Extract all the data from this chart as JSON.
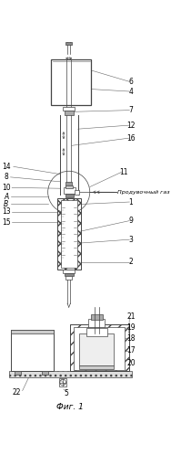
{
  "fig_label": "Фиг. 1",
  "purge_gas_label": "Продувочный газ",
  "bg_color": "#ffffff",
  "line_color": "#444444",
  "gray_light": "#cccccc",
  "gray_med": "#999999",
  "gray_dark": "#666666"
}
